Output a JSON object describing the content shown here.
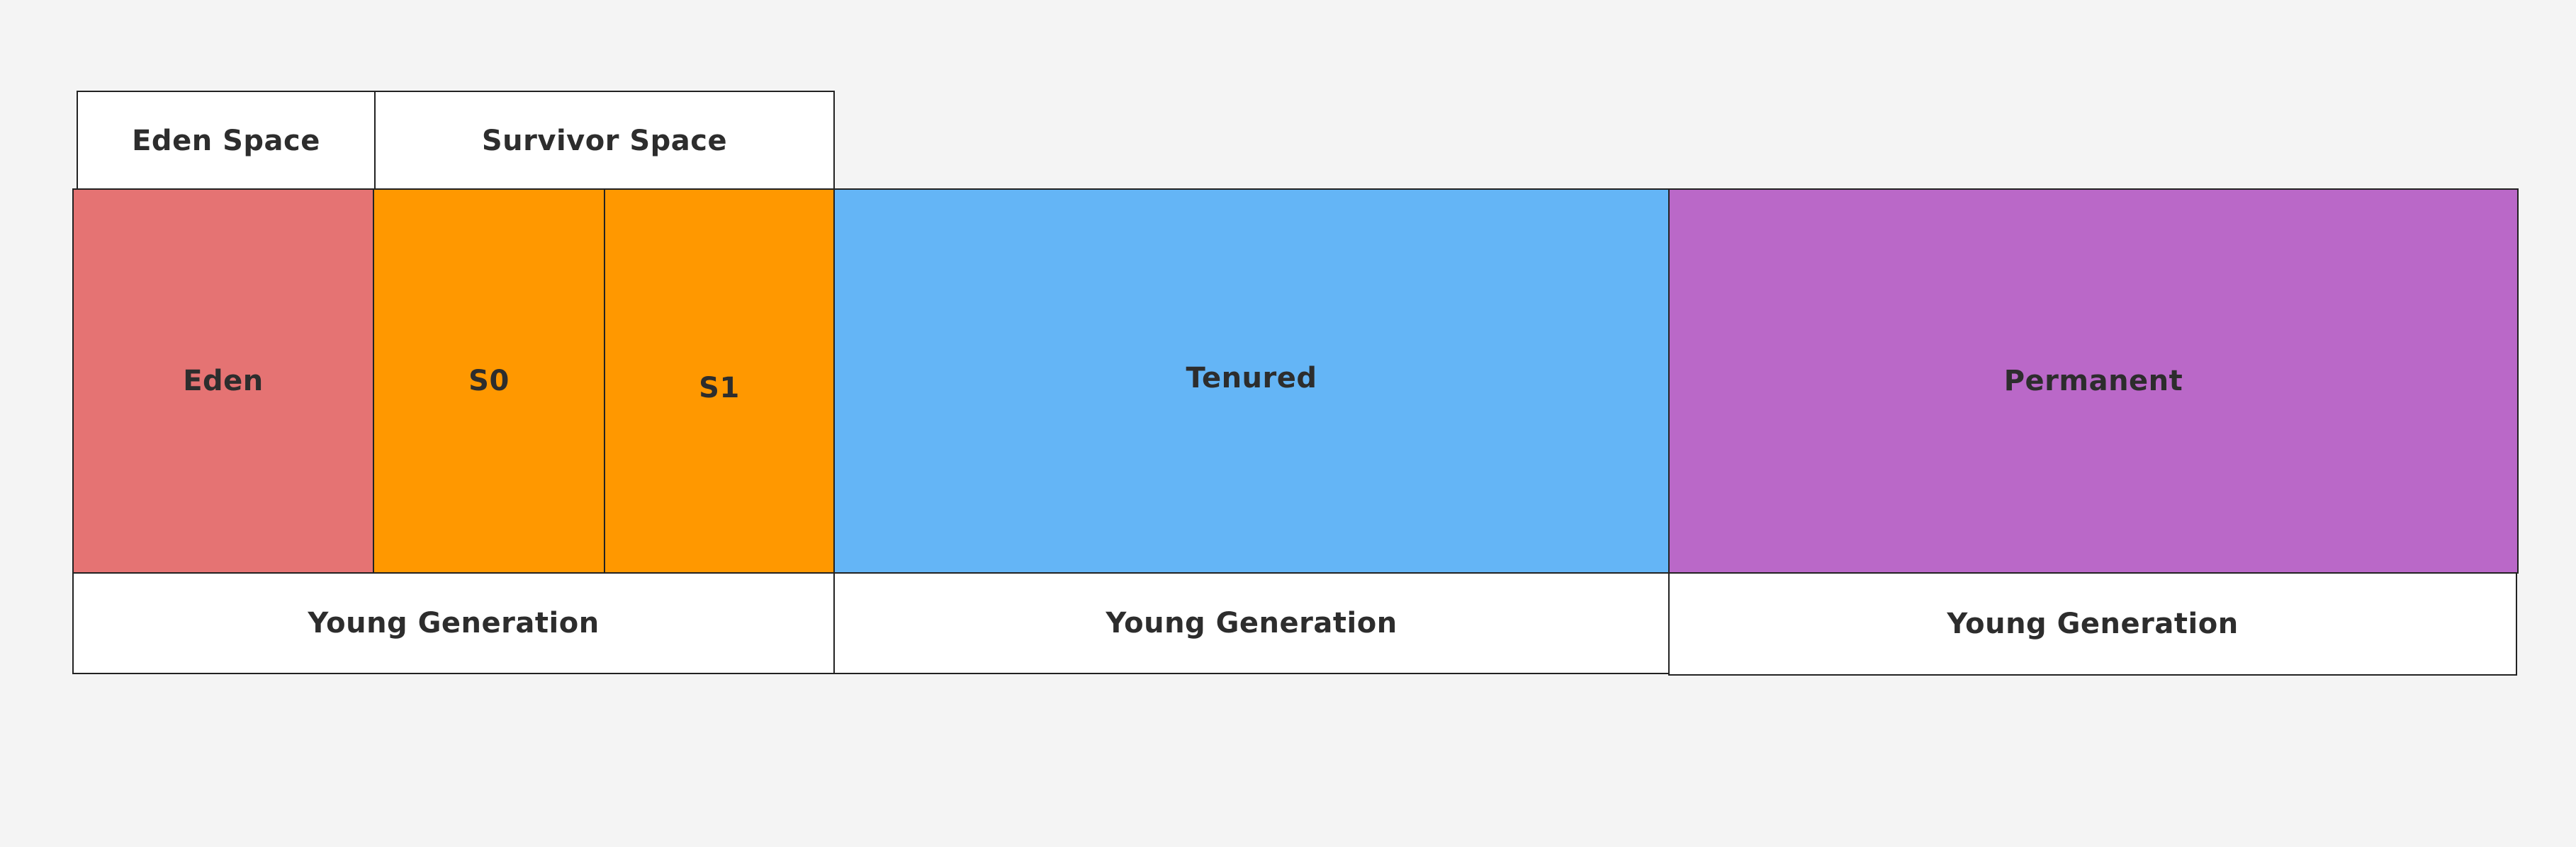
{
  "top_labels": {
    "eden_space": "Eden Space",
    "survivor_space": "Survivor Space"
  },
  "regions": {
    "eden": {
      "label": "Eden",
      "color": "#e57373"
    },
    "s0": {
      "label": "S0",
      "color": "#ff9800"
    },
    "s1": {
      "label": "S1",
      "color": "#ff9800"
    },
    "tenured": {
      "label": "Tenured",
      "color": "#64b5f6"
    },
    "permanent": {
      "label": "Permanent",
      "color": "#ba68c8"
    }
  },
  "bottom_labels": [
    "Young Generation",
    "Young Generation",
    "Young Generation"
  ]
}
